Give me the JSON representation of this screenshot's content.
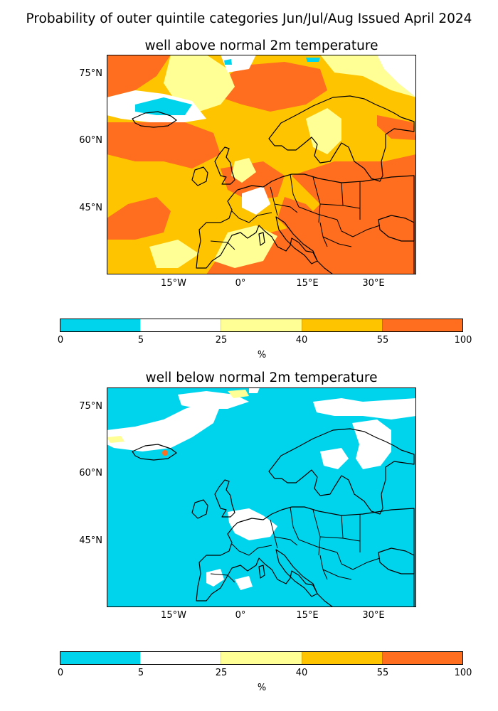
{
  "figure_title": "Probability of outer quintile categories Jun/Jul/Aug Issued April 2024",
  "colors": {
    "c0_5": "#00d4ec",
    "c5_25": "#ffffff",
    "c25_40": "#ffff96",
    "c40_55": "#ffc400",
    "c55_100": "#ff6e1e",
    "coast": "#000000"
  },
  "lat_labels": [
    "75°N",
    "60°N",
    "45°N"
  ],
  "lon_labels": [
    "15°W",
    "0°",
    "15°E",
    "30°E"
  ],
  "colorbar": {
    "ticks": [
      "0",
      "5",
      "25",
      "40",
      "55",
      "100"
    ],
    "unit": "%"
  },
  "panels": [
    {
      "title": "well above normal 2m temperature",
      "pattern": "above"
    },
    {
      "title": "well below normal 2m temperature",
      "pattern": "below"
    }
  ]
}
